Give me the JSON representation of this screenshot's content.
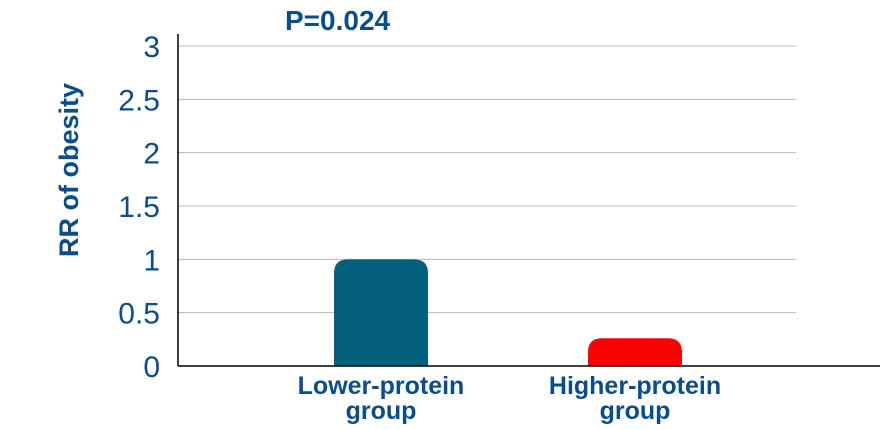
{
  "chart_data": {
    "type": "bar",
    "annotation": "P=0.024",
    "ylabel": "RR of obesity",
    "xlabel": "",
    "ylim": [
      0,
      3
    ],
    "yticks": [
      "0",
      "0.5",
      "1",
      "1.5",
      "2",
      "2.5",
      "3"
    ],
    "ytick_values": [
      0,
      0.5,
      1,
      1.5,
      2,
      2.5,
      3
    ],
    "grid": true,
    "categories": [
      [
        "Lower-protein",
        "group"
      ],
      [
        "Higher-protein",
        "group"
      ]
    ],
    "values": [
      1.0,
      0.26
    ],
    "colors": [
      "#05607e",
      "#ff0000"
    ],
    "text_color": "#0a4d8c"
  }
}
